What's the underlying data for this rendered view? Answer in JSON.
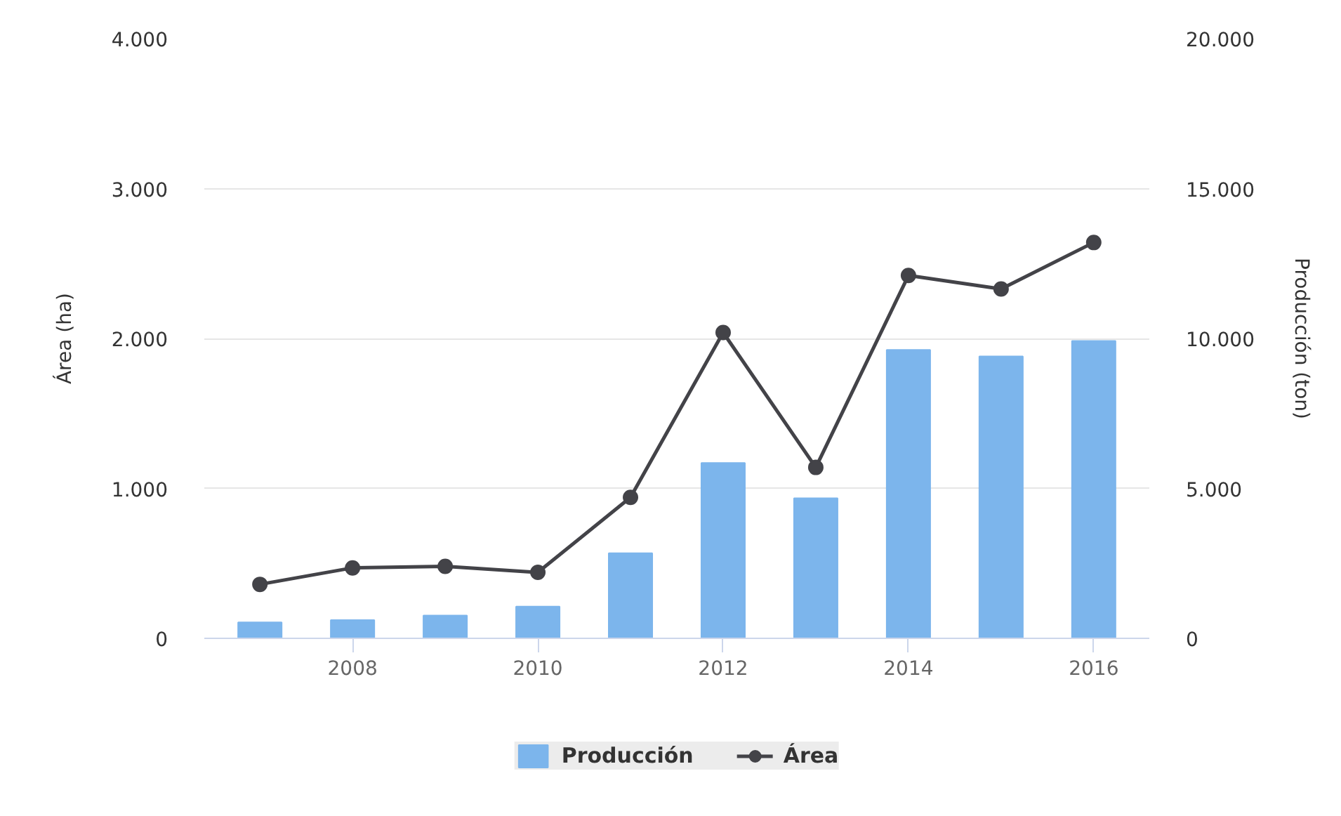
{
  "chart_data": {
    "type": "bar",
    "x": [
      2007,
      2008,
      2009,
      2010,
      2011,
      2012,
      2013,
      2014,
      2015,
      2016
    ],
    "series": [
      {
        "name": "Producción",
        "axis": "y2",
        "color": "#7cb5ec",
        "values": [
          530,
          610,
          760,
          1060,
          2840,
          5850,
          4670,
          9620,
          9400,
          9920
        ]
      },
      {
        "name": "Área",
        "type": "line",
        "color": "#434348",
        "values": [
          360,
          470,
          480,
          440,
          940,
          2040,
          1140,
          2420,
          2330,
          2640
        ]
      }
    ],
    "ylabel": "Área (ha)",
    "y2label": "Producción (ton)",
    "xlim": [
      2006.4,
      2016.6
    ],
    "xticks": [
      2008,
      2010,
      2012,
      2014,
      2016
    ],
    "ylim": [
      0,
      4000
    ],
    "yticks": [
      0,
      {
        "value": 1000,
        "label": "1.000"
      },
      {
        "value": 2000,
        "label": "2.000"
      },
      {
        "value": 3000,
        "label": "3.000"
      },
      {
        "value": 4000,
        "label": "4.000"
      }
    ],
    "y2lim": [
      0,
      20000
    ],
    "y2ticks": [
      0,
      {
        "value": 5000,
        "label": "5.000"
      },
      {
        "value": 10000,
        "label": "10.000"
      },
      {
        "value": 15000,
        "label": "15.000"
      },
      {
        "value": 20000,
        "label": "20.000"
      }
    ],
    "grid": "y",
    "legend": "bottom",
    "marker": "circle"
  }
}
